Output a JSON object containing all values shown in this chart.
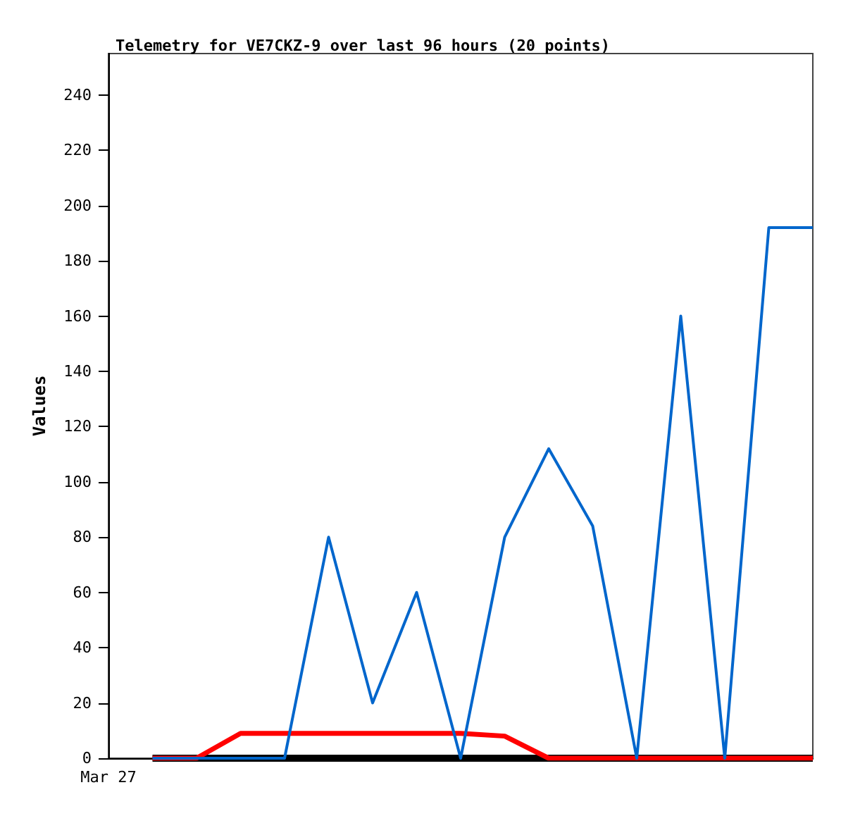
{
  "chart_data": {
    "type": "line",
    "title": "Telemetry for VE7CKZ-9 over last 96 hours (20 points)",
    "ylabel": "Values",
    "categories": [
      "Mar 27",
      null,
      null,
      null,
      null,
      null,
      null,
      null,
      null,
      null,
      null,
      null,
      null,
      null,
      null,
      null,
      null
    ],
    "ylim": [
      0,
      255
    ],
    "yticks": [
      0,
      20,
      40,
      60,
      80,
      100,
      120,
      140,
      160,
      180,
      200,
      220,
      240
    ],
    "grid": false,
    "marker": "none",
    "line_style": "solid",
    "series": [
      {
        "color": "#000000",
        "values": [
          null,
          0,
          0,
          0,
          0,
          0,
          0,
          0,
          0,
          0,
          0,
          0,
          0,
          0,
          0,
          0,
          0
        ]
      },
      {
        "color": "#ff0000",
        "values": [
          null,
          0,
          0,
          9,
          9,
          9,
          9,
          9,
          9,
          8,
          0,
          0,
          0,
          0,
          0,
          0,
          0
        ]
      },
      {
        "color": "#0066cc",
        "values": [
          null,
          0,
          0,
          0,
          0,
          80,
          20,
          60,
          0,
          80,
          112,
          84,
          0,
          160,
          0,
          192,
          192
        ]
      }
    ]
  }
}
